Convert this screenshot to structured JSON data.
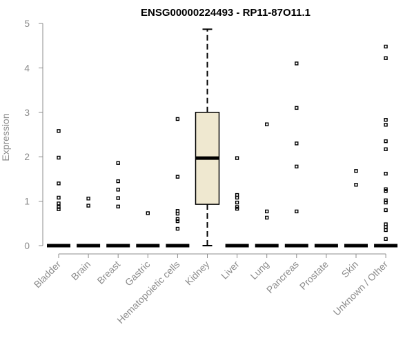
{
  "chart_data": {
    "type": "box",
    "title": "ENSG00000224493 - RP11-87O11.1",
    "xlabel": "",
    "ylabel": "Expression",
    "ylim": [
      0,
      5
    ],
    "yticks": [
      "0",
      "1",
      "2",
      "3",
      "4",
      "5"
    ],
    "categories": [
      "Bladder",
      "Brain",
      "Breast",
      "Gastric",
      "Hematopoietic cells",
      "Kidney",
      "Liver",
      "Lung",
      "Pancreas",
      "Prostate",
      "Skin",
      "Unknown / Other"
    ],
    "box_fill": "#efe8d0",
    "boxes": [
      {
        "category": "Bladder",
        "q1": 0,
        "median": 0,
        "q3": 0,
        "whisker_low": 0,
        "whisker_high": 0,
        "outliers": [
          0.82,
          0.87,
          0.95,
          1.08,
          1.4,
          1.98,
          2.58
        ]
      },
      {
        "category": "Brain",
        "q1": 0,
        "median": 0,
        "q3": 0,
        "whisker_low": 0,
        "whisker_high": 0,
        "outliers": [
          0.9,
          1.06
        ]
      },
      {
        "category": "Breast",
        "q1": 0,
        "median": 0,
        "q3": 0,
        "whisker_low": 0,
        "whisker_high": 0,
        "outliers": [
          0.88,
          1.07,
          1.26,
          1.45,
          1.86
        ]
      },
      {
        "category": "Gastric",
        "q1": 0,
        "median": 0,
        "q3": 0,
        "whisker_low": 0,
        "whisker_high": 0,
        "outliers": [
          0.73
        ]
      },
      {
        "category": "Hematopoietic cells",
        "q1": 0,
        "median": 0,
        "q3": 0,
        "whisker_low": 0,
        "whisker_high": 0,
        "outliers": [
          0.38,
          0.55,
          0.6,
          0.72,
          0.78,
          1.55,
          2.85
        ]
      },
      {
        "category": "Kidney",
        "q1": 0.93,
        "median": 1.97,
        "q3": 3.0,
        "whisker_low": 0,
        "whisker_high": 4.87,
        "outliers": []
      },
      {
        "category": "Liver",
        "q1": 0,
        "median": 0,
        "q3": 0,
        "whisker_low": 0,
        "whisker_high": 0,
        "outliers": [
          0.83,
          0.87,
          0.97,
          1.08,
          1.14,
          1.97
        ]
      },
      {
        "category": "Lung",
        "q1": 0,
        "median": 0,
        "q3": 0,
        "whisker_low": 0,
        "whisker_high": 0,
        "outliers": [
          0.63,
          0.77,
          2.73
        ]
      },
      {
        "category": "Pancreas",
        "q1": 0,
        "median": 0,
        "q3": 0,
        "whisker_low": 0,
        "whisker_high": 0,
        "outliers": [
          0.77,
          1.78,
          2.3,
          3.1,
          4.1
        ]
      },
      {
        "category": "Prostate",
        "q1": 0,
        "median": 0,
        "q3": 0,
        "whisker_low": 0,
        "whisker_high": 0,
        "outliers": []
      },
      {
        "category": "Skin",
        "q1": 0,
        "median": 0,
        "q3": 0,
        "whisker_low": 0,
        "whisker_high": 0,
        "outliers": [
          1.37,
          1.68
        ]
      },
      {
        "category": "Unknown / Other",
        "q1": 0,
        "median": 0,
        "q3": 0,
        "whisker_low": 0,
        "whisker_high": 0,
        "outliers": [
          0.15,
          0.35,
          0.42,
          0.48,
          0.8,
          0.97,
          1.02,
          1.23,
          1.27,
          1.62,
          2.17,
          2.35,
          2.72,
          2.83,
          4.22,
          4.48
        ]
      }
    ]
  }
}
